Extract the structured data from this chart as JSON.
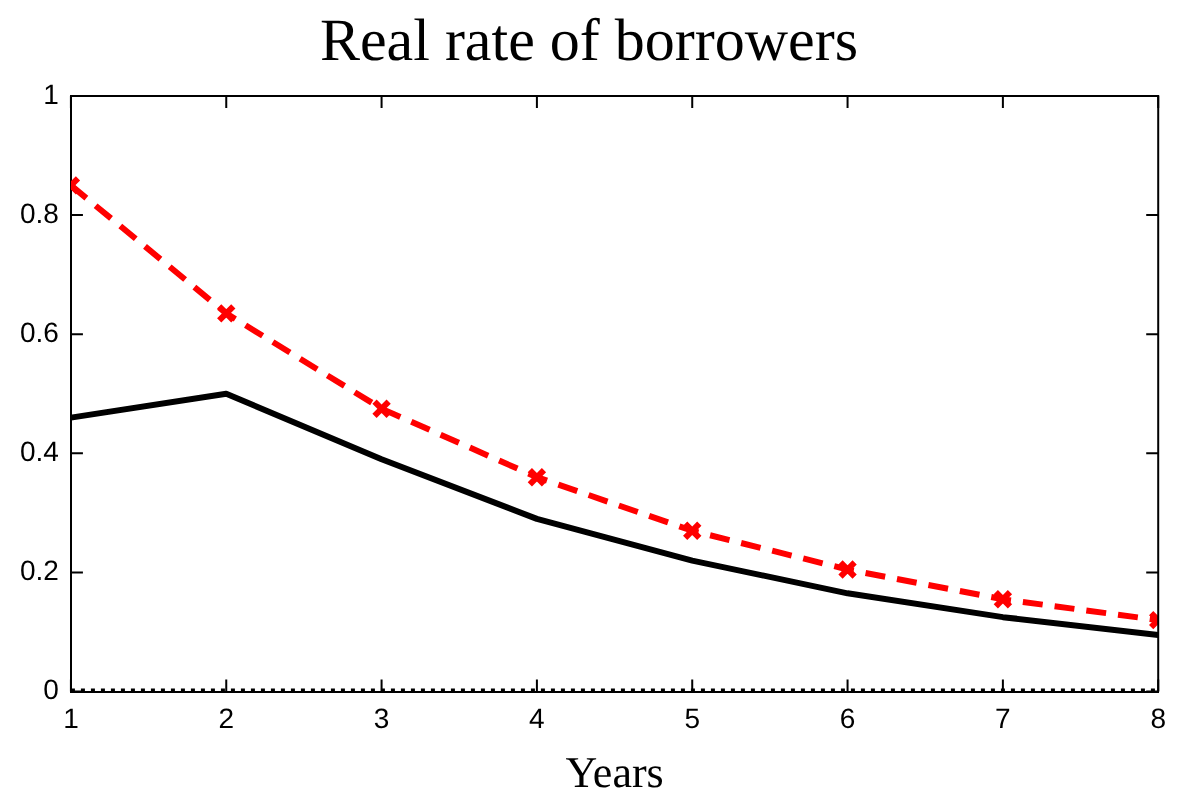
{
  "chart_data": {
    "type": "line",
    "title": "Real rate of borrowers",
    "xlabel": "Years",
    "x": [
      1,
      2,
      3,
      4,
      5,
      6,
      7,
      8
    ],
    "series": [
      {
        "color": "#ff0000",
        "values": [
          0.85,
          0.635,
          0.475,
          0.36,
          0.27,
          0.205,
          0.155,
          0.12
        ],
        "marker": "cross",
        "line_style": "dashed"
      },
      {
        "color": "#000000",
        "values": [
          0.46,
          0.5,
          0.39,
          0.29,
          0.22,
          0.165,
          0.125,
          0.095
        ],
        "marker": "none",
        "line_style": "solid"
      },
      {
        "color": "#000000",
        "values": [
          0,
          0,
          0,
          0,
          0,
          0,
          0,
          0
        ],
        "marker": "none",
        "line_style": "dotted"
      }
    ],
    "xlim": [
      1,
      8
    ],
    "xticks": [
      1,
      2,
      3,
      4,
      5,
      6,
      7,
      8
    ],
    "ylim": [
      0,
      1
    ],
    "yticks": [
      0,
      0.2,
      0.4,
      0.6,
      0.8,
      1
    ],
    "grid": false,
    "legend": false
  }
}
